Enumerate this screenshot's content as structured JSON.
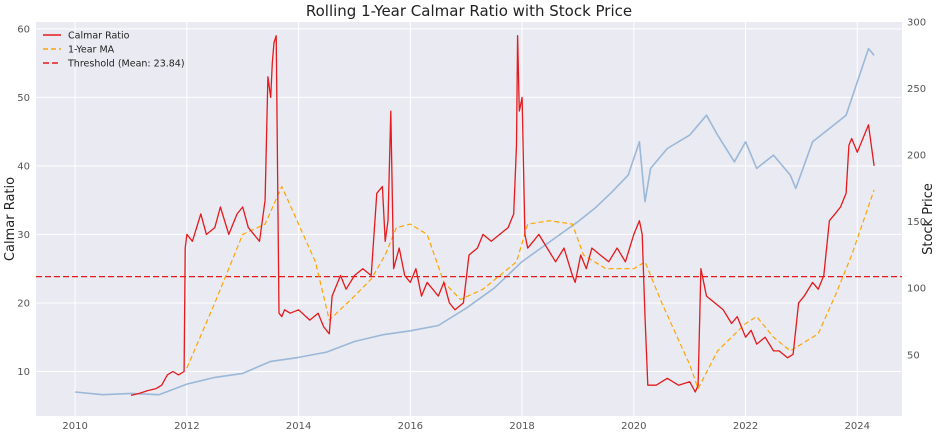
{
  "chart_data": {
    "type": "line",
    "title": "Rolling 1-Year Calmar Ratio with Stock Price",
    "xlabel": "",
    "ylabel": "Calmar Ratio",
    "ylabel_right": "Stock Price",
    "xlim": [
      2009.3,
      2024.8
    ],
    "ylim": [
      3.5,
      61
    ],
    "ylim_right": [
      4,
      300
    ],
    "x_ticks": [
      2010,
      2012,
      2014,
      2016,
      2018,
      2020,
      2022,
      2024
    ],
    "x_tick_labels": [
      "2010",
      "2012",
      "2014",
      "2016",
      "2018",
      "2020",
      "2022",
      "2024"
    ],
    "y_ticks": [
      10,
      20,
      30,
      40,
      50,
      60
    ],
    "y_tick_labels": [
      "10",
      "20",
      "30",
      "40",
      "50",
      "60"
    ],
    "y_ticks_right": [
      50,
      100,
      150,
      200,
      250,
      300
    ],
    "y_tick_labels_right": [
      "50",
      "100",
      "150",
      "200",
      "250",
      "300"
    ],
    "grid": true,
    "legend": {
      "position": "top-left"
    },
    "colors": {
      "calmar": "#e41a1c",
      "ma": "#ffa500",
      "threshold": "#e41a1c",
      "price": "#9bb8d8",
      "background": "#eaeaf2",
      "grid": "#ffffff"
    },
    "series": [
      {
        "name": "Calmar Ratio",
        "axis": "left",
        "style": "solid",
        "x": [
          2011.0,
          2011.15,
          2011.3,
          2011.45,
          2011.55,
          2011.65,
          2011.75,
          2011.85,
          2011.95,
          2011.97,
          2012.0,
          2012.1,
          2012.25,
          2012.35,
          2012.5,
          2012.6,
          2012.75,
          2012.9,
          2013.0,
          2013.1,
          2013.2,
          2013.3,
          2013.4,
          2013.45,
          2013.5,
          2013.53,
          2013.56,
          2013.6,
          2013.65,
          2013.7,
          2013.75,
          2013.85,
          2014.0,
          2014.2,
          2014.35,
          2014.45,
          2014.55,
          2014.6,
          2014.75,
          2014.85,
          2015.0,
          2015.15,
          2015.3,
          2015.4,
          2015.5,
          2015.55,
          2015.6,
          2015.65,
          2015.7,
          2015.8,
          2015.9,
          2016.0,
          2016.1,
          2016.2,
          2016.3,
          2016.4,
          2016.5,
          2016.6,
          2016.7,
          2016.8,
          2016.95,
          2017.05,
          2017.2,
          2017.3,
          2017.45,
          2017.6,
          2017.75,
          2017.85,
          2017.9,
          2017.92,
          2017.95,
          2018.0,
          2018.05,
          2018.1,
          2018.2,
          2018.3,
          2018.45,
          2018.6,
          2018.75,
          2018.9,
          2018.95,
          2019.05,
          2019.15,
          2019.25,
          2019.4,
          2019.55,
          2019.7,
          2019.85,
          2020.0,
          2020.1,
          2020.15,
          2020.2,
          2020.25,
          2020.4,
          2020.6,
          2020.8,
          2021.0,
          2021.1,
          2021.15,
          2021.2,
          2021.3,
          2021.45,
          2021.6,
          2021.75,
          2021.85,
          2022.0,
          2022.1,
          2022.2,
          2022.35,
          2022.5,
          2022.6,
          2022.75,
          2022.85,
          2022.95,
          2023.05,
          2023.2,
          2023.3,
          2023.4,
          2023.5,
          2023.6,
          2023.7,
          2023.8,
          2023.85,
          2023.9,
          2024.0,
          2024.1,
          2024.2,
          2024.3
        ],
        "values": [
          6.5,
          6.8,
          7.2,
          7.5,
          8.0,
          9.5,
          10.0,
          9.5,
          10.0,
          28.0,
          30.0,
          29.0,
          33.0,
          30.0,
          31.0,
          34.0,
          30.0,
          33.0,
          34.0,
          31.0,
          30.0,
          29.0,
          35.0,
          53.0,
          50.0,
          55.0,
          58.0,
          59.0,
          18.5,
          18.0,
          19.0,
          18.5,
          19.0,
          17.5,
          18.5,
          16.5,
          15.5,
          21.0,
          24.0,
          22.0,
          24.0,
          25.0,
          24.0,
          36.0,
          37.0,
          29.0,
          32.0,
          48.0,
          25.0,
          28.0,
          24.0,
          23.0,
          25.0,
          21.0,
          23.0,
          22.0,
          21.0,
          23.0,
          20.0,
          19.0,
          20.0,
          27.0,
          28.0,
          30.0,
          29.0,
          30.0,
          31.0,
          33.0,
          43.0,
          59.0,
          48.0,
          50.0,
          30.0,
          28.0,
          29.0,
          30.0,
          28.0,
          26.0,
          28.0,
          24.0,
          23.0,
          27.0,
          25.0,
          28.0,
          27.0,
          26.0,
          28.0,
          26.0,
          30.0,
          32.0,
          30.0,
          18.0,
          8.0,
          8.0,
          9.0,
          8.0,
          8.5,
          7.0,
          8.0,
          25.0,
          21.0,
          20.0,
          19.0,
          17.0,
          18.0,
          15.0,
          16.0,
          14.0,
          15.0,
          13.0,
          13.0,
          12.0,
          12.5,
          20.0,
          21.0,
          23.0,
          22.0,
          24.0,
          32.0,
          33.0,
          34.0,
          36.0,
          43.0,
          44.0,
          42.0,
          44.0,
          46.0,
          40.0
        ]
      },
      {
        "name": "1-Year MA",
        "axis": "left",
        "style": "dashed",
        "x": [
          2012.0,
          2012.5,
          2013.0,
          2013.4,
          2013.7,
          2014.3,
          2014.55,
          2015.0,
          2015.3,
          2015.55,
          2015.75,
          2016.0,
          2016.3,
          2016.6,
          2016.9,
          2017.3,
          2017.9,
          2018.1,
          2018.5,
          2018.9,
          2019.1,
          2019.5,
          2020.0,
          2020.2,
          2020.5,
          2021.0,
          2021.15,
          2021.5,
          2022.0,
          2022.2,
          2022.5,
          2022.8,
          2023.0,
          2023.3,
          2023.6,
          2023.9,
          2024.3
        ],
        "values": [
          10.5,
          20.0,
          30.0,
          31.5,
          37.0,
          26.0,
          17.5,
          21.0,
          23.5,
          27.0,
          31.0,
          31.5,
          30.0,
          23.0,
          20.5,
          22.0,
          26.0,
          31.5,
          32.0,
          31.5,
          27.0,
          25.0,
          25.0,
          26.0,
          20.0,
          11.0,
          7.5,
          13.0,
          17.0,
          18.0,
          15.0,
          13.0,
          14.0,
          15.5,
          21.0,
          27.0,
          36.5
        ]
      },
      {
        "name": "Threshold (Mean: 23.84)",
        "axis": "left",
        "style": "dashed",
        "x": [
          2009.3,
          2024.8
        ],
        "values": [
          23.84,
          23.84
        ]
      },
      {
        "name": "",
        "axis": "right",
        "style": "solid",
        "x": [
          2010.0,
          2010.5,
          2011.0,
          2011.5,
          2012.0,
          2012.5,
          2013.0,
          2013.5,
          2014.0,
          2014.5,
          2015.0,
          2015.5,
          2016.0,
          2016.5,
          2017.0,
          2017.5,
          2018.0,
          2018.5,
          2019.0,
          2019.3,
          2019.6,
          2019.9,
          2020.1,
          2020.2,
          2020.3,
          2020.6,
          2021.0,
          2021.3,
          2021.5,
          2021.8,
          2022.0,
          2022.2,
          2022.5,
          2022.8,
          2022.9,
          2023.2,
          2023.5,
          2023.8,
          2024.0,
          2024.2,
          2024.3
        ],
        "values": [
          22,
          20,
          21,
          20,
          28,
          33,
          36,
          45,
          48,
          52,
          60,
          65,
          68,
          72,
          85,
          100,
          120,
          135,
          150,
          160,
          172,
          185,
          210,
          165,
          190,
          205,
          215,
          230,
          215,
          195,
          210,
          190,
          200,
          185,
          175,
          210,
          220,
          230,
          255,
          280,
          275
        ]
      }
    ]
  }
}
